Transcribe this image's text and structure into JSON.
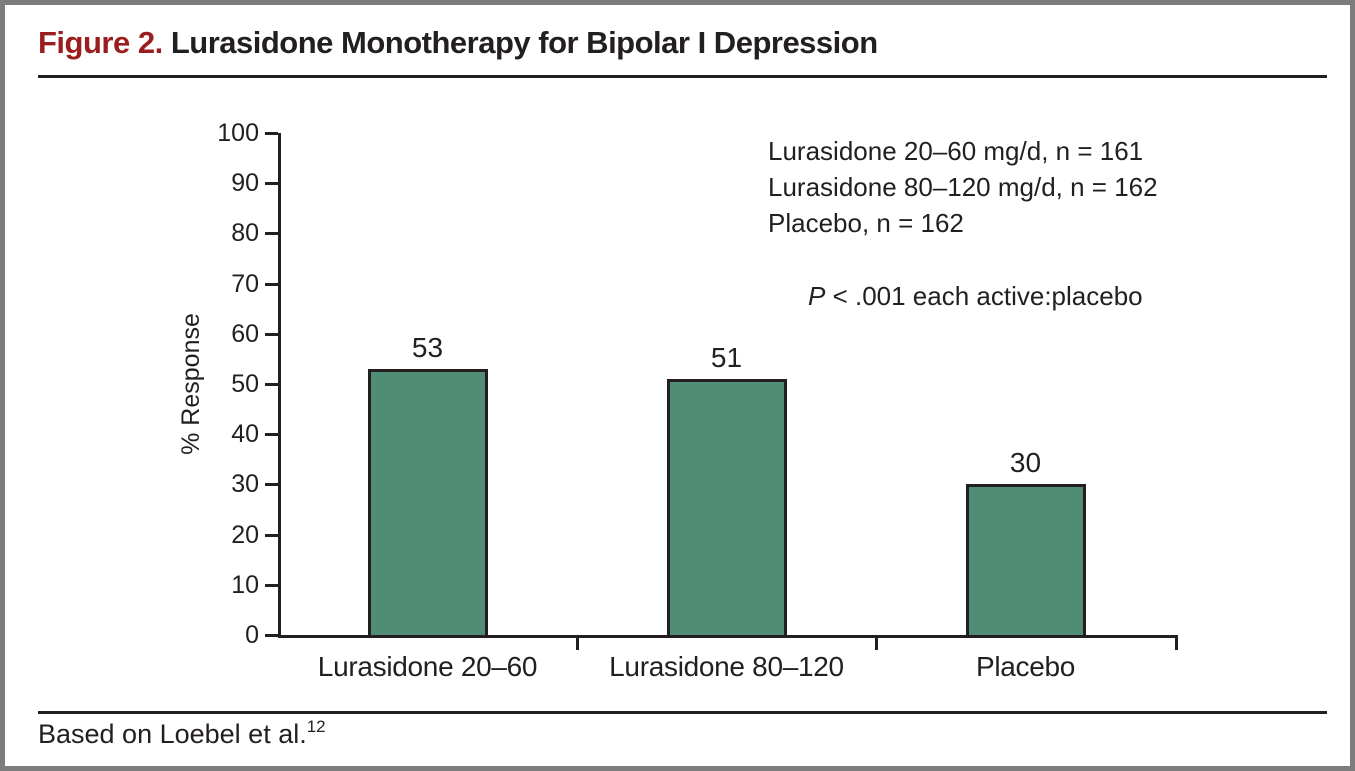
{
  "figure": {
    "label": "Figure 2.",
    "title": "Lurasidone Monotherapy for Bipolar I Depression",
    "source_prefix": "Based on Loebel et al.",
    "source_ref": "12"
  },
  "colors": {
    "accent_red": "#9a1e1e",
    "bar_fill": "#4f8d75",
    "bar_border": "#231f20",
    "frame_gray": "#7d7d7d",
    "text": "#231f20"
  },
  "chart_data": {
    "type": "bar",
    "title": "",
    "categories": [
      "Lurasidone 20–60",
      "Lurasidone 80–120",
      "Placebo"
    ],
    "values": [
      53,
      51,
      30
    ],
    "xlabel": "",
    "ylabel": "% Response",
    "ylim": [
      0,
      100
    ],
    "yticks": [
      0,
      10,
      20,
      30,
      40,
      50,
      60,
      70,
      80,
      90,
      100
    ],
    "grid": false,
    "bar_value_labels": [
      "53",
      "51",
      "30"
    ],
    "legend_position": "top-right",
    "legend_lines": [
      "Lurasidone 20–60 mg/d, n = 161",
      "Lurasidone 80–120 mg/d, n = 162",
      "Placebo, n = 162"
    ],
    "annotation": {
      "p_label": "P",
      "p_text": " < .001 each active:placebo"
    }
  }
}
